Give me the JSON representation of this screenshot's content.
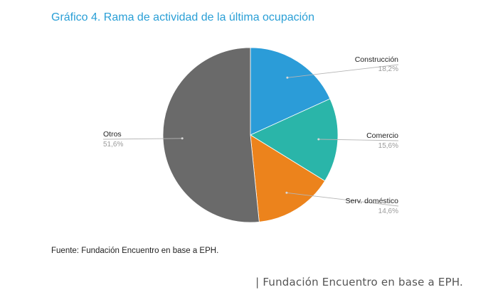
{
  "chart_data": {
    "type": "pie",
    "title": "Gráfico 4. Rama de actividad de la última ocupación",
    "slices": [
      {
        "label": "Construcción",
        "value": 18.2,
        "value_label": "18,2%",
        "color": "#2b9cd8"
      },
      {
        "label": "Comercio",
        "value": 15.6,
        "value_label": "15,6%",
        "color": "#2ab5a9"
      },
      {
        "label": "Serv. doméstico",
        "value": 14.6,
        "value_label": "14,6%",
        "color": "#ec831c"
      },
      {
        "label": "Otros",
        "value": 51.6,
        "value_label": "51,6%",
        "color": "#6a6a6a"
      }
    ],
    "start_angle_deg": 0,
    "direction": "clockwise",
    "legend": "none",
    "grid": false
  },
  "source_note": "Fuente: Fundación Encuentro en base a EPH.",
  "credit": "| Fundación Encuentro en base a EPH."
}
